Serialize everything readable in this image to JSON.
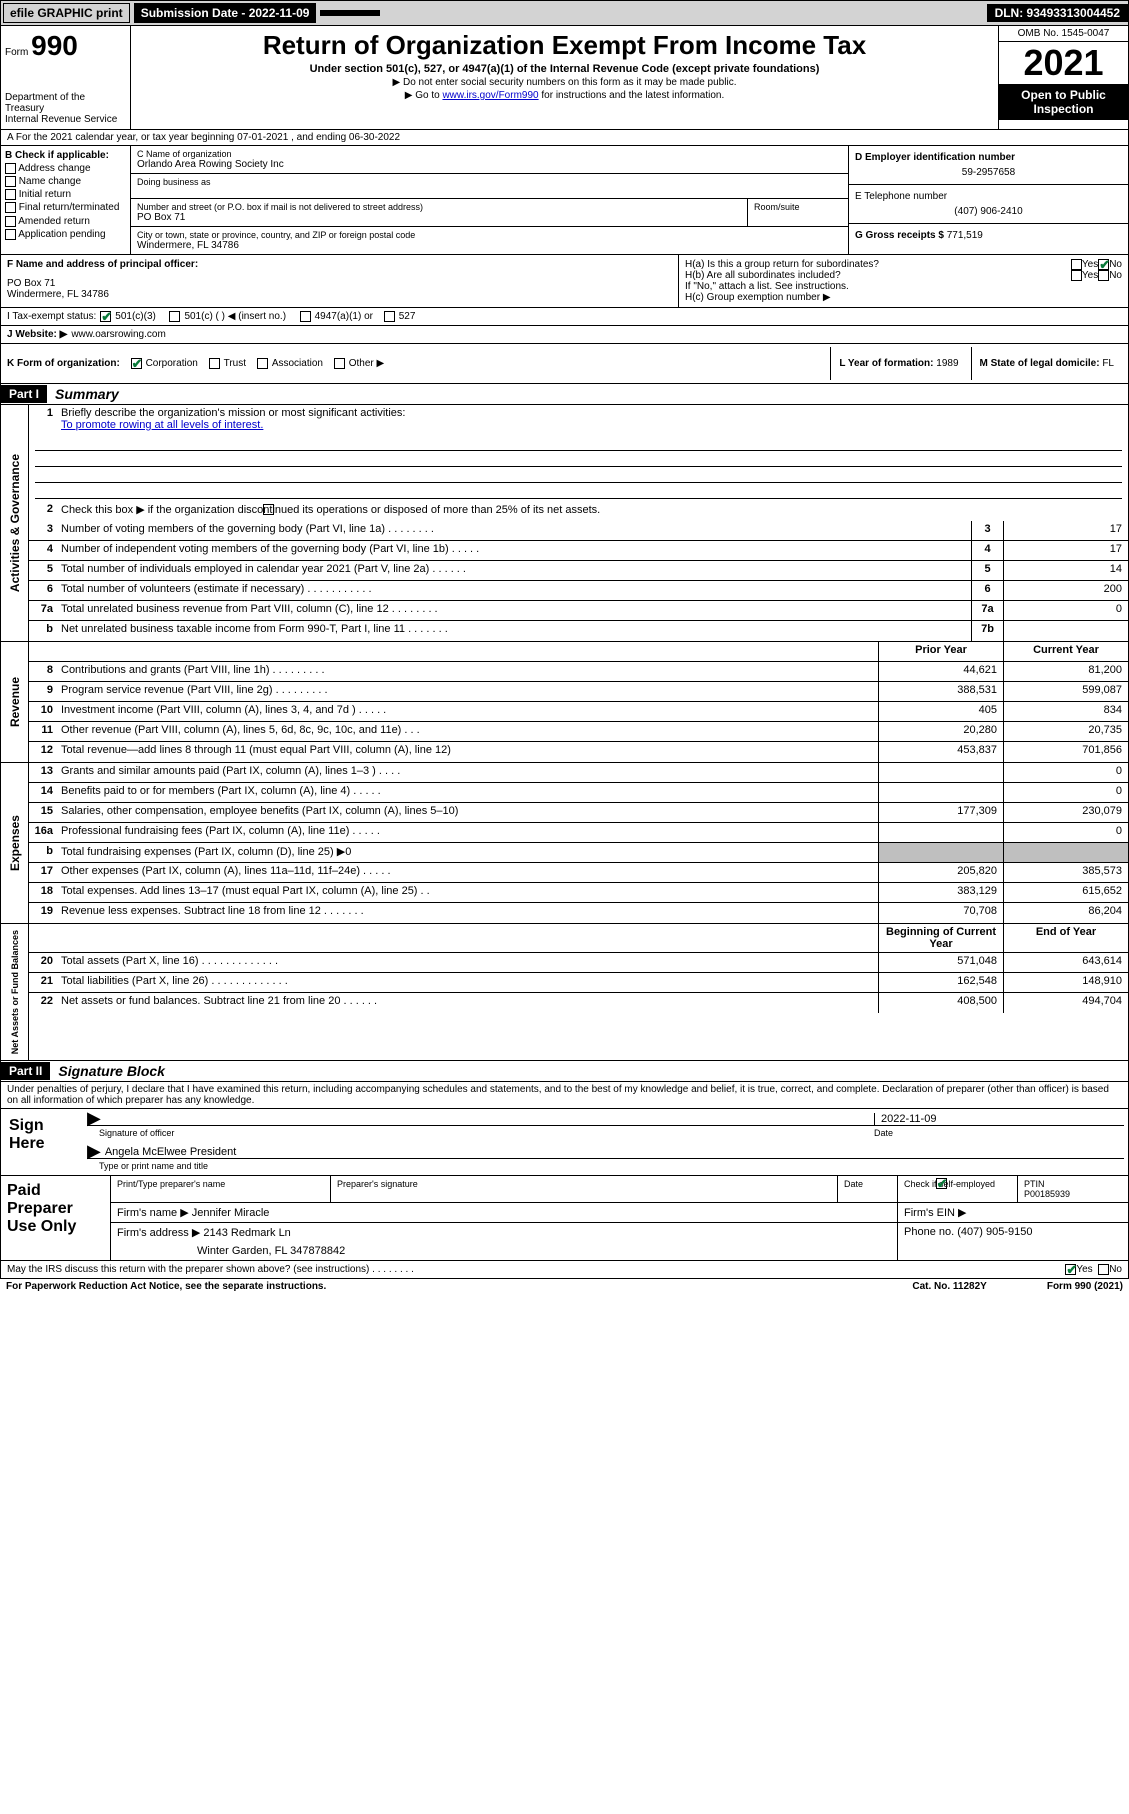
{
  "topbar": {
    "efile": "efile GRAPHIC print",
    "submission_label": "Submission Date - 2022-11-09",
    "dln": "DLN: 93493313004452"
  },
  "header": {
    "form_prefix": "Form",
    "form_number": "990",
    "dept": "Department of the Treasury",
    "irs": "Internal Revenue Service",
    "title": "Return of Organization Exempt From Income Tax",
    "subtitle": "Under section 501(c), 527, or 4947(a)(1) of the Internal Revenue Code (except private foundations)",
    "note1": "▶ Do not enter social security numbers on this form as it may be made public.",
    "note2_pre": "▶ Go to ",
    "note2_link": "www.irs.gov/Form990",
    "note2_post": " for instructions and the latest information.",
    "omb": "OMB No. 1545-0047",
    "year": "2021",
    "open": "Open to Public Inspection"
  },
  "period": {
    "text": "A For the 2021 calendar year, or tax year beginning 07-01-2021   , and ending 06-30-2022"
  },
  "boxB": {
    "label": "B Check if applicable:",
    "opts": [
      "Address change",
      "Name change",
      "Initial return",
      "Final return/terminated",
      "Amended return",
      "Application pending"
    ]
  },
  "boxC": {
    "name_label": "C Name of organization",
    "name": "Orlando Area Rowing Society Inc",
    "dba_label": "Doing business as",
    "dba": "",
    "street_label": "Number and street (or P.O. box if mail is not delivered to street address)",
    "room_label": "Room/suite",
    "street": "PO Box 71",
    "city_label": "City or town, state or province, country, and ZIP or foreign postal code",
    "city": "Windermere, FL  34786"
  },
  "boxD": {
    "label": "D Employer identification number",
    "value": "59-2957658"
  },
  "boxE": {
    "label": "E Telephone number",
    "value": "(407) 906-2410"
  },
  "boxG": {
    "label": "G Gross receipts $",
    "value": "771,519"
  },
  "boxF": {
    "label": "F Name and address of principal officer:",
    "line1": "PO Box 71",
    "line2": "Windermere, FL  34786"
  },
  "boxH": {
    "ha": "H(a)  Is this a group return for subordinates?",
    "yes": "Yes",
    "no": "No",
    "hb": "H(b)  Are all subordinates included?",
    "hb_note": "If \"No,\" attach a list. See instructions.",
    "hc": "H(c)  Group exemption number ▶"
  },
  "rowI": {
    "label": "I   Tax-exempt status:",
    "c3": "501(c)(3)",
    "c": "501(c) (   ) ◀ (insert no.)",
    "a1": "4947(a)(1) or",
    "s527": "527"
  },
  "rowJ": {
    "label": "J   Website: ▶",
    "value": "www.oarsrowing.com"
  },
  "rowK": {
    "label": "K Form of organization:",
    "corp": "Corporation",
    "trust": "Trust",
    "assoc": "Association",
    "other": "Other ▶"
  },
  "rowL": {
    "label": "L Year of formation:",
    "value": "1989"
  },
  "rowM": {
    "label": "M State of legal domicile:",
    "value": "FL"
  },
  "part1": {
    "header": "Part I",
    "title": "Summary",
    "l1_label": "Briefly describe the organization's mission or most significant activities:",
    "l1_text": "To promote rowing at all levels of interest.",
    "l2": "Check this box ▶       if the organization discontinued its operations or disposed of more than 25% of its net assets.",
    "lines_gov": [
      {
        "n": "3",
        "d": "Number of voting members of the governing body (Part VI, line 1a)   .    .    .    .    .    .    .    .",
        "b": "3",
        "v": "17"
      },
      {
        "n": "4",
        "d": "Number of independent voting members of the governing body (Part VI, line 1b)   .    .    .    .    .",
        "b": "4",
        "v": "17"
      },
      {
        "n": "5",
        "d": "Total number of individuals employed in calendar year 2021 (Part V, line 2a)   .    .    .    .    .    .",
        "b": "5",
        "v": "14"
      },
      {
        "n": "6",
        "d": "Total number of volunteers (estimate if necessary)   .    .    .    .    .    .    .    .    .    .    .",
        "b": "6",
        "v": "200"
      },
      {
        "n": "7a",
        "d": "Total unrelated business revenue from Part VIII, column (C), line 12   .    .    .    .    .    .    .    .",
        "b": "7a",
        "v": "0"
      },
      {
        "n": "b",
        "d": "Net unrelated business taxable income from Form 990-T, Part I, line 11   .    .    .    .    .    .    .",
        "b": "7b",
        "v": ""
      }
    ],
    "col_prior": "Prior Year",
    "col_current": "Current Year",
    "lines_rev": [
      {
        "n": "8",
        "d": "Contributions and grants (Part VIII, line 1h)   .    .    .    .    .    .    .    .    .",
        "p": "44,621",
        "c": "81,200"
      },
      {
        "n": "9",
        "d": "Program service revenue (Part VIII, line 2g)   .    .    .    .    .    .    .    .    .",
        "p": "388,531",
        "c": "599,087"
      },
      {
        "n": "10",
        "d": "Investment income (Part VIII, column (A), lines 3, 4, and 7d )   .    .    .    .    .",
        "p": "405",
        "c": "834"
      },
      {
        "n": "11",
        "d": "Other revenue (Part VIII, column (A), lines 5, 6d, 8c, 9c, 10c, and 11e)    .    .    .",
        "p": "20,280",
        "c": "20,735"
      },
      {
        "n": "12",
        "d": "Total revenue—add lines 8 through 11 (must equal Part VIII, column (A), line 12)",
        "p": "453,837",
        "c": "701,856"
      }
    ],
    "lines_exp": [
      {
        "n": "13",
        "d": "Grants and similar amounts paid (Part IX, column (A), lines 1–3 )   .    .    .    .",
        "p": "",
        "c": "0"
      },
      {
        "n": "14",
        "d": "Benefits paid to or for members (Part IX, column (A), line 4)   .    .    .    .    .",
        "p": "",
        "c": "0"
      },
      {
        "n": "15",
        "d": "Salaries, other compensation, employee benefits (Part IX, column (A), lines 5–10)",
        "p": "177,309",
        "c": "230,079"
      },
      {
        "n": "16a",
        "d": "Professional fundraising fees (Part IX, column (A), line 11e)   .    .    .    .    .",
        "p": "",
        "c": "0"
      },
      {
        "n": "b",
        "d": "Total fundraising expenses (Part IX, column (D), line 25) ▶0",
        "p": "shaded",
        "c": "shaded"
      },
      {
        "n": "17",
        "d": "Other expenses (Part IX, column (A), lines 11a–11d, 11f–24e)   .    .    .    .    .",
        "p": "205,820",
        "c": "385,573"
      },
      {
        "n": "18",
        "d": "Total expenses. Add lines 13–17 (must equal Part IX, column (A), line 25)    .    .",
        "p": "383,129",
        "c": "615,652"
      },
      {
        "n": "19",
        "d": "Revenue less expenses. Subtract line 18 from line 12   .    .    .    .    .    .    .",
        "p": "70,708",
        "c": "86,204"
      }
    ],
    "col_beg": "Beginning of Current Year",
    "col_end": "End of Year",
    "lines_bal": [
      {
        "n": "20",
        "d": "Total assets (Part X, line 16)   .    .    .    .    .    .    .    .    .    .    .    .    .",
        "p": "571,048",
        "c": "643,614"
      },
      {
        "n": "21",
        "d": "Total liabilities (Part X, line 26)   .    .    .    .    .    .    .    .    .    .    .    .    .",
        "p": "162,548",
        "c": "148,910"
      },
      {
        "n": "22",
        "d": "Net assets or fund balances. Subtract line 21 from line 20   .    .    .    .    .    .",
        "p": "408,500",
        "c": "494,704"
      }
    ],
    "vlabels": {
      "gov": "Activities & Governance",
      "rev": "Revenue",
      "exp": "Expenses",
      "bal": "Net Assets or Fund Balances"
    }
  },
  "part2": {
    "header": "Part II",
    "title": "Signature Block",
    "decl": "Under penalties of perjury, I declare that I have examined this return, including accompanying schedules and statements, and to the best of my knowledge and belief, it is true, correct, and complete. Declaration of preparer (other than officer) is based on all information of which preparer has any knowledge.",
    "sign_here": "Sign Here",
    "sig_officer": "Signature of officer",
    "sig_date": "2022-11-09",
    "date_label": "Date",
    "name_title": "Angela McElwee  President",
    "name_title_label": "Type or print name and title",
    "paid": "Paid Preparer Use Only",
    "pt_name": "Print/Type preparer's name",
    "pt_sig": "Preparer's signature",
    "pt_date": "Date",
    "pt_check": "Check         if self-employed",
    "ptin_label": "PTIN",
    "ptin": "P00185939",
    "firm_name_label": "Firm's name    ▶",
    "firm_name": "Jennifer Miracle",
    "firm_ein": "Firm's EIN ▶",
    "firm_addr_label": "Firm's address ▶",
    "firm_addr1": "2143 Redmark Ln",
    "firm_addr2": "Winter Garden, FL  347878842",
    "phone_label": "Phone no.",
    "phone": "(407) 905-9150",
    "discuss": "May the IRS discuss this return with the preparer shown above? (see instructions)    .    .    .    .    .    .    .    .",
    "yes": "Yes",
    "no": "No"
  },
  "footer": {
    "pra": "For Paperwork Reduction Act Notice, see the separate instructions.",
    "cat": "Cat. No. 11282Y",
    "form": "Form 990 (2021)"
  }
}
